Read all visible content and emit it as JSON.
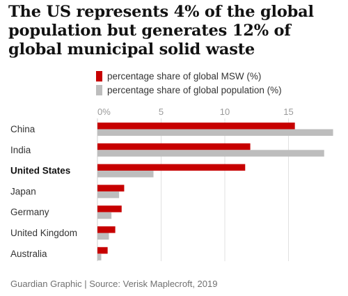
{
  "title": "The US represents 4% of the global population but generates 12% of global municipal solid waste",
  "source": "Guardian Graphic | Source: Verisk Maplecroft, 2019",
  "colors": {
    "msw": "#c70000",
    "population": "#bdbdbd",
    "grid": "#e0e0e0",
    "text": "#333333",
    "tick": "#9a9a9a"
  },
  "chart_data": {
    "type": "bar",
    "orientation": "horizontal",
    "title": "The US represents 4% of the global population but generates 12% of global municipal solid waste",
    "categories": [
      "China",
      "India",
      "United States",
      "Japan",
      "Germany",
      "United Kingdom",
      "Australia"
    ],
    "highlight_category": "United States",
    "series": [
      {
        "name": "percentage share of global MSW (%)",
        "color": "#c70000",
        "values": [
          15.5,
          12.0,
          11.6,
          2.1,
          1.9,
          1.4,
          0.8
        ]
      },
      {
        "name": "percentage share of global population (%)",
        "color": "#bdbdbd",
        "values": [
          18.5,
          17.8,
          4.4,
          1.7,
          1.1,
          0.9,
          0.3
        ]
      }
    ],
    "x_ticks": [
      0,
      5,
      10,
      15
    ],
    "x_tick_labels": [
      "0%",
      "5",
      "10",
      "15"
    ],
    "xlim": [
      0,
      18.5
    ],
    "grid": true,
    "legend_position": "top"
  }
}
